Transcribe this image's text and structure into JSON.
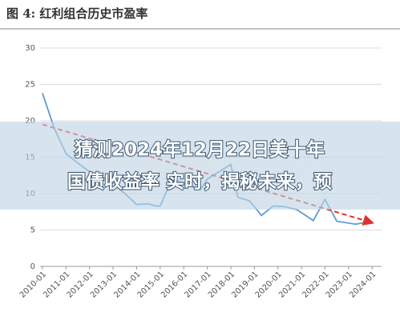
{
  "chart_data": {
    "type": "line",
    "title": "图 4:  红利组合历史市盈率",
    "overlay_text": [
      "猜测2024年12月22日美十年",
      "国债收益率 实时，揭秘未来，预"
    ],
    "xlim": [
      2009.9,
      2024.4
    ],
    "xticks": [
      {
        "value": 2010,
        "label": "2010-01"
      },
      {
        "value": 2011,
        "label": "2011-01"
      },
      {
        "value": 2012,
        "label": "2012-01"
      },
      {
        "value": 2013,
        "label": "2013-01"
      },
      {
        "value": 2014,
        "label": "2014-01"
      },
      {
        "value": 2015,
        "label": "2015-01"
      },
      {
        "value": 2016,
        "label": "2016-01"
      },
      {
        "value": 2017,
        "label": "2017-01"
      },
      {
        "value": 2018,
        "label": "2018-01"
      },
      {
        "value": 2019,
        "label": "2019-01"
      },
      {
        "value": 2020,
        "label": "2020-01"
      },
      {
        "value": 2021,
        "label": "2021-01"
      },
      {
        "value": 2022,
        "label": "2022-01"
      },
      {
        "value": 2023,
        "label": "2023-01"
      },
      {
        "value": 2024,
        "label": "2024-01"
      }
    ],
    "ylim": [
      0,
      30
    ],
    "yticks": [
      0,
      5,
      10,
      15,
      20,
      25,
      30
    ],
    "grid": true,
    "series": [
      {
        "color": "#5b9bd5",
        "dash": false,
        "x": [
          2010.0,
          2010.5,
          2011.0,
          2011.5,
          2012.0,
          2012.6,
          2013.0,
          2013.5,
          2014.0,
          2014.5,
          2014.8,
          2015.0,
          2015.5,
          2016.0,
          2016.7,
          2017.0,
          2017.5,
          2018.0,
          2018.3,
          2018.8,
          2019.3,
          2019.8,
          2020.3,
          2020.8,
          2021.5,
          2022.0,
          2022.5,
          2023.3,
          2024.0
        ],
        "values": [
          23.8,
          19.0,
          15.5,
          14.2,
          13.0,
          12.2,
          11.5,
          10.0,
          8.5,
          8.6,
          8.3,
          8.3,
          12.0,
          11.5,
          10.5,
          12.0,
          13.0,
          14.0,
          9.5,
          9.0,
          7.0,
          8.3,
          8.2,
          7.8,
          6.3,
          9.2,
          6.2,
          5.8,
          6.2
        ]
      },
      {
        "color": "#e03030",
        "dash": true,
        "x": [
          2010.0,
          2024.0
        ],
        "values": [
          19.5,
          6.0
        ]
      }
    ]
  }
}
